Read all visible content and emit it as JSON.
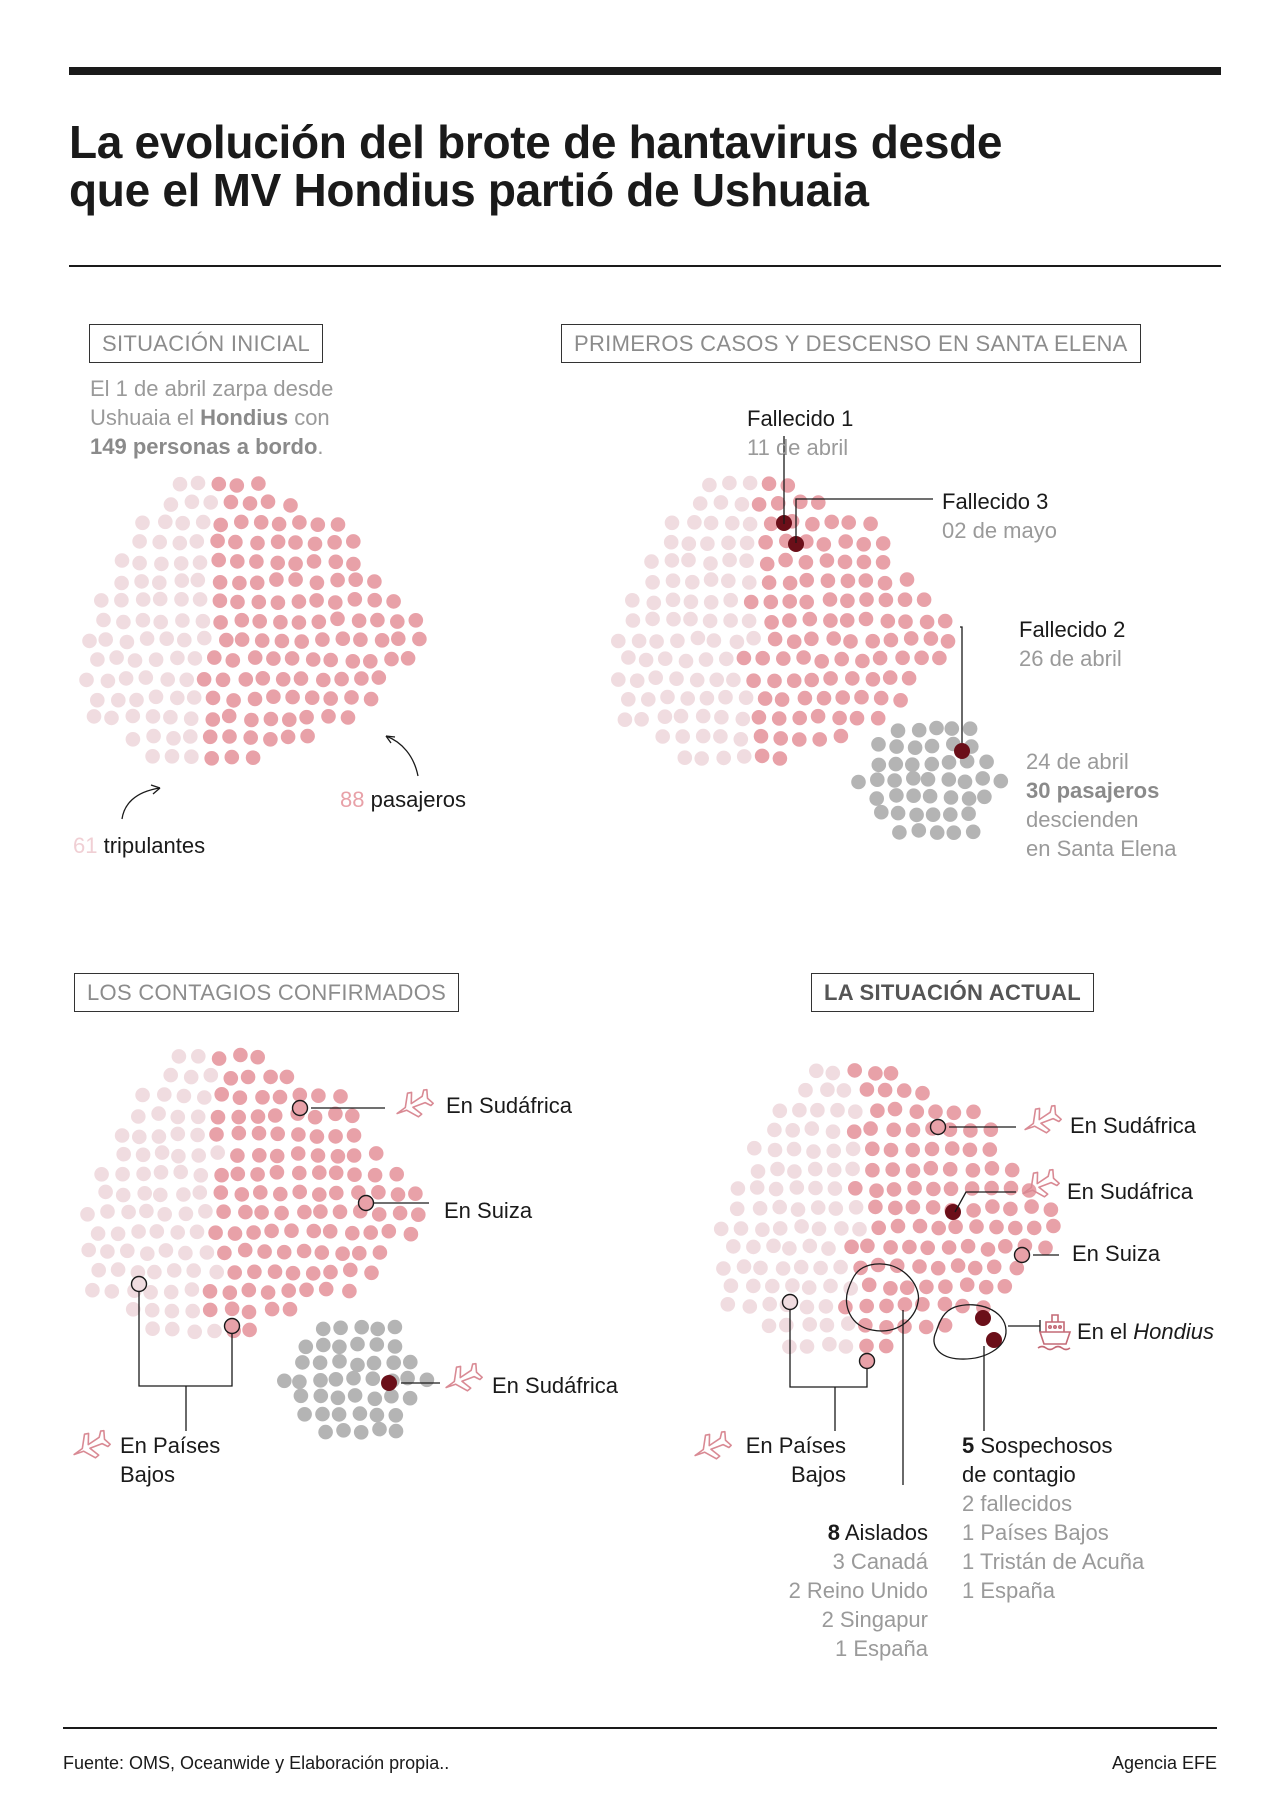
{
  "title_line1": "La evolución del brote de hantavirus desde",
  "title_line2": "que el MV Hondius partió de Ushuaia",
  "colors": {
    "crew": "#f0dce0",
    "passenger": "#e8a1a8",
    "deceased": "#6b0f19",
    "landed": "#b4b4b4",
    "icon": "#d98a94"
  },
  "panel1": {
    "heading": "SITUACIÓN INICIAL",
    "intro_1": "El 1 de abril zarpa desde",
    "intro_2a": "Ushuaia el ",
    "intro_2b": "Hondius",
    "intro_2c": " con",
    "intro_3a": "149 personas a bordo",
    "intro_3b": ".",
    "passengers_count": "88",
    "passengers_label": "pasajeros",
    "crew_count": "61",
    "crew_label": "tripulantes"
  },
  "panel2": {
    "heading": "PRIMEROS CASOS Y DESCENSO EN SANTA ELENA",
    "death1_label": "Fallecido 1",
    "death1_date": "11 de abril",
    "death3_label": "Fallecido 3",
    "death3_date": "02 de mayo",
    "death2_label": "Fallecido 2",
    "death2_date": "26 de abril",
    "landing_date": "24 de abril",
    "landing_count": "30 pasajeros",
    "landing_text1": "descienden",
    "landing_text2": "en Santa Elena"
  },
  "panel3": {
    "heading": "LOS CONTAGIOS CONFIRMADOS",
    "loc_southafrica_1": "En Sudáfrica",
    "loc_switzerland": "En Suiza",
    "loc_southafrica_2": "En Sudáfrica",
    "loc_netherlands_1": "En Países",
    "loc_netherlands_2": "Bajos"
  },
  "panel4": {
    "heading": "LA SITUACIÓN ACTUAL",
    "loc_southafrica_1": "En Sudáfrica",
    "loc_southafrica_2": "En Sudáfrica",
    "loc_switzerland": "En Suiza",
    "loc_ship_prefix": "En el ",
    "loc_ship_name": "Hondius",
    "loc_netherlands_1": "En Países",
    "loc_netherlands_2": "Bajos",
    "isolated_count": "8",
    "isolated_label": " Aislados",
    "isolated_items": [
      "3 Canadá",
      "2 Reino Unido",
      "2 Singapur",
      "1 España"
    ],
    "suspects_count": "5",
    "suspects_label": " Sospechosos",
    "suspects_label2": "de contagio",
    "suspects_items": [
      "2 fallecidos",
      "1 Países Bajos",
      "1 Tristán de Acuña",
      "1 España"
    ]
  },
  "footer": {
    "source": "Fuente: OMS, Oceanwide y Elaboración propia..",
    "agency": "Agencia EFE"
  }
}
